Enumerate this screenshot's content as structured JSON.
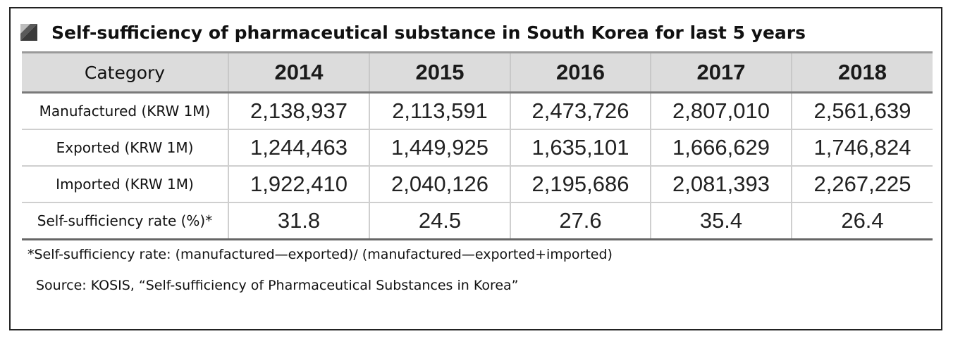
{
  "title": "Self-sufficiency of  pharmaceutical substance in South Korea for last 5 years",
  "icon": "corner-triangle-icon",
  "table": {
    "headers": [
      "Category",
      "2014",
      "2015",
      "2016",
      "2017",
      "2018"
    ],
    "rows": [
      {
        "label": "Manufactured (KRW 1M)",
        "values": [
          "2,138,937",
          "2,113,591",
          "2,473,726",
          "2,807,010",
          "2,561,639"
        ]
      },
      {
        "label": "Exported (KRW 1M)",
        "values": [
          "1,244,463",
          "1,449,925",
          "1,635,101",
          "1,666,629",
          "1,746,824"
        ]
      },
      {
        "label": "Imported (KRW 1M)",
        "values": [
          "1,922,410",
          "2,040,126",
          "2,195,686",
          "2,081,393",
          "2,267,225"
        ]
      },
      {
        "label": "Self-sufficiency rate (%)*",
        "values": [
          "31.8",
          "24.5",
          "27.6",
          "35.4",
          "26.4"
        ]
      }
    ]
  },
  "footnote": "*Self-sufficiency rate: (manufactured—exported)/ (manufactured—exported+imported)",
  "source": "Source: KOSIS, “Self-sufficiency of Pharmaceutical Substances in Korea”",
  "colors": {
    "header_bg": "#dcdcdc",
    "border": "#222222"
  }
}
